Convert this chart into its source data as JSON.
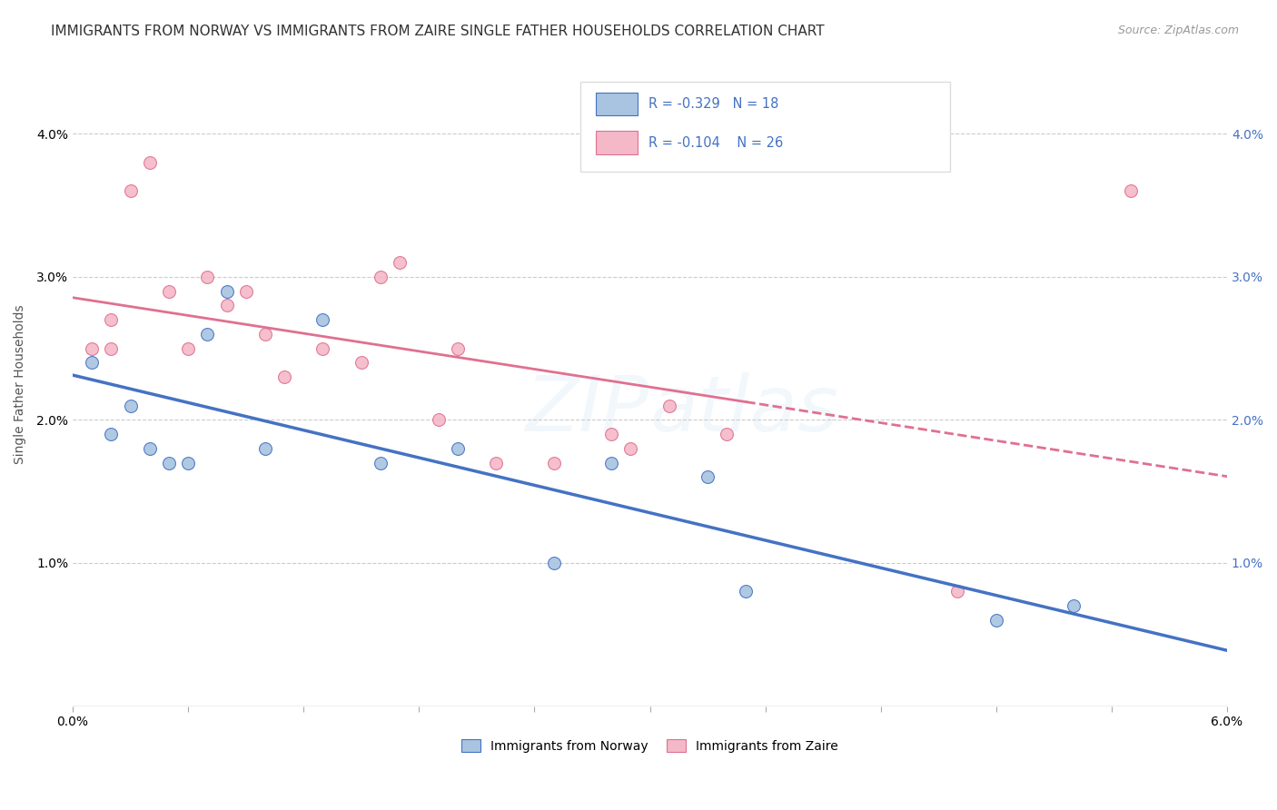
{
  "title": "IMMIGRANTS FROM NORWAY VS IMMIGRANTS FROM ZAIRE SINGLE FATHER HOUSEHOLDS CORRELATION CHART",
  "source": "Source: ZipAtlas.com",
  "ylabel": "Single Father Households",
  "xlim": [
    0.0,
    0.06
  ],
  "ylim": [
    0.0,
    0.045
  ],
  "xtick_labels_sparse": [
    "0.0%",
    "",
    "",
    "",
    "",
    "",
    "",
    "",
    "",
    "",
    "6.0%"
  ],
  "xtick_vals_dense": [
    0.0,
    0.006,
    0.012,
    0.018,
    0.024,
    0.03,
    0.036,
    0.042,
    0.048,
    0.054,
    0.06
  ],
  "xtick_vals_labeled": [
    0.0,
    0.06
  ],
  "xtick_labels_labeled": [
    "0.0%",
    "6.0%"
  ],
  "ytick_labels": [
    "1.0%",
    "2.0%",
    "3.0%",
    "4.0%"
  ],
  "ytick_vals": [
    0.01,
    0.02,
    0.03,
    0.04
  ],
  "legend_labels": [
    "Immigrants from Norway",
    "Immigrants from Zaire"
  ],
  "legend_r_norway": "R = -0.329",
  "legend_n_norway": "N = 18",
  "legend_r_zaire": "R = -0.104",
  "legend_n_zaire": "N = 26",
  "norway_color": "#a8c4e0",
  "zaire_color": "#f4b8c8",
  "norway_line_color": "#4472c4",
  "zaire_line_color": "#e07090",
  "norway_x": [
    0.001,
    0.002,
    0.003,
    0.004,
    0.005,
    0.006,
    0.007,
    0.008,
    0.01,
    0.013,
    0.016,
    0.02,
    0.025,
    0.028,
    0.033,
    0.035,
    0.048,
    0.052
  ],
  "norway_y": [
    0.024,
    0.019,
    0.021,
    0.018,
    0.017,
    0.017,
    0.026,
    0.029,
    0.018,
    0.027,
    0.017,
    0.018,
    0.01,
    0.017,
    0.016,
    0.008,
    0.006,
    0.007
  ],
  "zaire_x": [
    0.001,
    0.002,
    0.002,
    0.003,
    0.004,
    0.005,
    0.006,
    0.007,
    0.008,
    0.009,
    0.01,
    0.011,
    0.013,
    0.015,
    0.016,
    0.017,
    0.019,
    0.02,
    0.022,
    0.025,
    0.028,
    0.029,
    0.031,
    0.034,
    0.046,
    0.055
  ],
  "zaire_y": [
    0.025,
    0.027,
    0.025,
    0.036,
    0.038,
    0.029,
    0.025,
    0.03,
    0.028,
    0.029,
    0.026,
    0.023,
    0.025,
    0.024,
    0.03,
    0.031,
    0.02,
    0.025,
    0.017,
    0.017,
    0.019,
    0.018,
    0.021,
    0.019,
    0.008,
    0.036
  ],
  "background_color": "#ffffff",
  "grid_color": "#cccccc",
  "title_fontsize": 11,
  "source_fontsize": 9,
  "axis_label_fontsize": 10,
  "tick_fontsize": 10,
  "legend_fontsize": 10,
  "marker_size": 100,
  "watermark_alpha": 0.13
}
